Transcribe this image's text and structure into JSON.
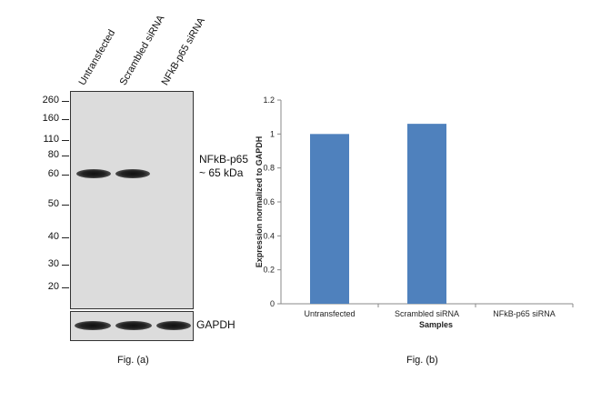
{
  "fig_a": {
    "lanes": [
      "Untransfected",
      "Scrambled siRNA",
      "NFkB-p65 siRNA"
    ],
    "markers": [
      "260",
      "160",
      "110",
      "80",
      "60",
      "50",
      "40",
      "30",
      "20"
    ],
    "target_label_line1": "NFkB-p65",
    "target_label_line2": "~ 65 kDa",
    "control_label": "GAPDH",
    "caption": "Fig. (a)"
  },
  "fig_b": {
    "caption": "Fig. (b)"
  },
  "chart_data": {
    "type": "bar",
    "categories": [
      "Untransfected",
      "Scrambled siRNA",
      "NFkB-p65 siRNA"
    ],
    "values": [
      1.0,
      1.06,
      0.0
    ],
    "xlabel": "Samples",
    "ylabel": "Expression normalized to GAPDH",
    "ylim": [
      0,
      1.2
    ],
    "yticks": [
      "0",
      "0.2",
      "0.4",
      "0.6",
      "0.8",
      "1",
      "1.2"
    ],
    "grid": false,
    "bar_color": "#4f81bd"
  }
}
